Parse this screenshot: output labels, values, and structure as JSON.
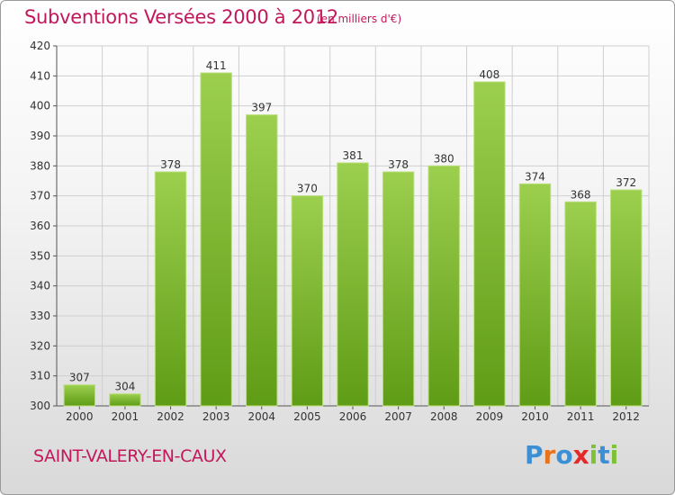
{
  "header": {
    "title": "Subventions Versées 2000 à 2012",
    "unit": "(en milliers d'€)"
  },
  "footer": {
    "commune": "SAINT-VALERY-EN-CAUX",
    "logo": "Proxiti"
  },
  "colors": {
    "title": "#c2185b",
    "bar_light": "#9ccf4e",
    "bar_dark": "#5f9c16",
    "grid": "#cfcfcf",
    "logo_blue": "#3a8fd6",
    "logo_orange": "#e8731a",
    "logo_red": "#e32a2a",
    "logo_green": "#7cc136"
  },
  "chart_data": {
    "type": "bar",
    "title": "Subventions Versées 2000 à 2012",
    "subtitle": "(en milliers d'€)",
    "xlabel": "",
    "ylabel": "",
    "categories": [
      "2000",
      "2001",
      "2002",
      "2003",
      "2004",
      "2005",
      "2006",
      "2007",
      "2008",
      "2009",
      "2010",
      "2011",
      "2012"
    ],
    "values": [
      307,
      304,
      378,
      411,
      397,
      370,
      381,
      378,
      380,
      408,
      374,
      368,
      372
    ],
    "ylim": [
      300,
      420
    ],
    "yticks": [
      300,
      310,
      320,
      330,
      340,
      350,
      360,
      370,
      380,
      390,
      400,
      410,
      420
    ],
    "grid": true,
    "legend": "none"
  }
}
